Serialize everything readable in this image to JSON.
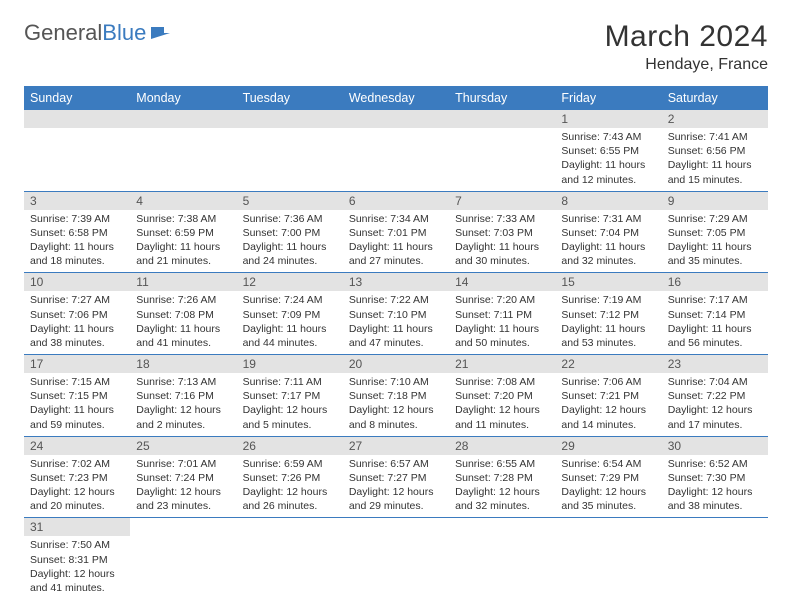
{
  "logo": {
    "part1": "General",
    "part2": "Blue"
  },
  "title": "March 2024",
  "location": "Hendaye, France",
  "header_bg": "#3b7bbf",
  "daynum_bg": "#e3e3e3",
  "weekdays": [
    "Sunday",
    "Monday",
    "Tuesday",
    "Wednesday",
    "Thursday",
    "Friday",
    "Saturday"
  ],
  "weeks": [
    [
      null,
      null,
      null,
      null,
      null,
      {
        "n": "1",
        "sr": "7:43 AM",
        "ss": "6:55 PM",
        "dl": "11 hours and 12 minutes."
      },
      {
        "n": "2",
        "sr": "7:41 AM",
        "ss": "6:56 PM",
        "dl": "11 hours and 15 minutes."
      }
    ],
    [
      {
        "n": "3",
        "sr": "7:39 AM",
        "ss": "6:58 PM",
        "dl": "11 hours and 18 minutes."
      },
      {
        "n": "4",
        "sr": "7:38 AM",
        "ss": "6:59 PM",
        "dl": "11 hours and 21 minutes."
      },
      {
        "n": "5",
        "sr": "7:36 AM",
        "ss": "7:00 PM",
        "dl": "11 hours and 24 minutes."
      },
      {
        "n": "6",
        "sr": "7:34 AM",
        "ss": "7:01 PM",
        "dl": "11 hours and 27 minutes."
      },
      {
        "n": "7",
        "sr": "7:33 AM",
        "ss": "7:03 PM",
        "dl": "11 hours and 30 minutes."
      },
      {
        "n": "8",
        "sr": "7:31 AM",
        "ss": "7:04 PM",
        "dl": "11 hours and 32 minutes."
      },
      {
        "n": "9",
        "sr": "7:29 AM",
        "ss": "7:05 PM",
        "dl": "11 hours and 35 minutes."
      }
    ],
    [
      {
        "n": "10",
        "sr": "7:27 AM",
        "ss": "7:06 PM",
        "dl": "11 hours and 38 minutes."
      },
      {
        "n": "11",
        "sr": "7:26 AM",
        "ss": "7:08 PM",
        "dl": "11 hours and 41 minutes."
      },
      {
        "n": "12",
        "sr": "7:24 AM",
        "ss": "7:09 PM",
        "dl": "11 hours and 44 minutes."
      },
      {
        "n": "13",
        "sr": "7:22 AM",
        "ss": "7:10 PM",
        "dl": "11 hours and 47 minutes."
      },
      {
        "n": "14",
        "sr": "7:20 AM",
        "ss": "7:11 PM",
        "dl": "11 hours and 50 minutes."
      },
      {
        "n": "15",
        "sr": "7:19 AM",
        "ss": "7:12 PM",
        "dl": "11 hours and 53 minutes."
      },
      {
        "n": "16",
        "sr": "7:17 AM",
        "ss": "7:14 PM",
        "dl": "11 hours and 56 minutes."
      }
    ],
    [
      {
        "n": "17",
        "sr": "7:15 AM",
        "ss": "7:15 PM",
        "dl": "11 hours and 59 minutes."
      },
      {
        "n": "18",
        "sr": "7:13 AM",
        "ss": "7:16 PM",
        "dl": "12 hours and 2 minutes."
      },
      {
        "n": "19",
        "sr": "7:11 AM",
        "ss": "7:17 PM",
        "dl": "12 hours and 5 minutes."
      },
      {
        "n": "20",
        "sr": "7:10 AM",
        "ss": "7:18 PM",
        "dl": "12 hours and 8 minutes."
      },
      {
        "n": "21",
        "sr": "7:08 AM",
        "ss": "7:20 PM",
        "dl": "12 hours and 11 minutes."
      },
      {
        "n": "22",
        "sr": "7:06 AM",
        "ss": "7:21 PM",
        "dl": "12 hours and 14 minutes."
      },
      {
        "n": "23",
        "sr": "7:04 AM",
        "ss": "7:22 PM",
        "dl": "12 hours and 17 minutes."
      }
    ],
    [
      {
        "n": "24",
        "sr": "7:02 AM",
        "ss": "7:23 PM",
        "dl": "12 hours and 20 minutes."
      },
      {
        "n": "25",
        "sr": "7:01 AM",
        "ss": "7:24 PM",
        "dl": "12 hours and 23 minutes."
      },
      {
        "n": "26",
        "sr": "6:59 AM",
        "ss": "7:26 PM",
        "dl": "12 hours and 26 minutes."
      },
      {
        "n": "27",
        "sr": "6:57 AM",
        "ss": "7:27 PM",
        "dl": "12 hours and 29 minutes."
      },
      {
        "n": "28",
        "sr": "6:55 AM",
        "ss": "7:28 PM",
        "dl": "12 hours and 32 minutes."
      },
      {
        "n": "29",
        "sr": "6:54 AM",
        "ss": "7:29 PM",
        "dl": "12 hours and 35 minutes."
      },
      {
        "n": "30",
        "sr": "6:52 AM",
        "ss": "7:30 PM",
        "dl": "12 hours and 38 minutes."
      }
    ],
    [
      {
        "n": "31",
        "sr": "7:50 AM",
        "ss": "8:31 PM",
        "dl": "12 hours and 41 minutes."
      },
      null,
      null,
      null,
      null,
      null,
      null
    ]
  ],
  "labels": {
    "sunrise": "Sunrise:",
    "sunset": "Sunset:",
    "daylight": "Daylight:"
  }
}
